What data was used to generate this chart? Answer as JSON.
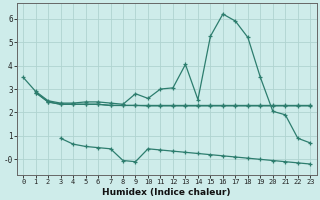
{
  "title": "",
  "xlabel": "Humidex (Indice chaleur)",
  "bg_color": "#ceecea",
  "line_color": "#2d7d6e",
  "grid_color": "#b0d4d0",
  "xlim": [
    -0.5,
    23.5
  ],
  "ylim": [
    -0.65,
    6.65
  ],
  "xticks": [
    0,
    1,
    2,
    3,
    4,
    5,
    6,
    7,
    8,
    9,
    10,
    11,
    12,
    13,
    14,
    15,
    16,
    17,
    18,
    19,
    20,
    21,
    22,
    23
  ],
  "yticks": [
    0,
    1,
    2,
    3,
    4,
    5,
    6
  ],
  "ytick_labels": [
    "-0",
    "1",
    "2",
    "3",
    "4",
    "5",
    "6"
  ],
  "line1_x": [
    0,
    1,
    2,
    3,
    4,
    5,
    6,
    7,
    8,
    9,
    10,
    11,
    12,
    13,
    14,
    15,
    16,
    17,
    18,
    19,
    20,
    21,
    22,
    23
  ],
  "line1_y": [
    3.5,
    2.9,
    2.5,
    2.4,
    2.4,
    2.45,
    2.45,
    2.4,
    2.35,
    2.8,
    2.6,
    3.0,
    3.05,
    4.05,
    2.55,
    5.25,
    6.2,
    5.9,
    5.2,
    3.5,
    2.05,
    1.9,
    0.9,
    0.7
  ],
  "line2_x": [
    1,
    2,
    3,
    4,
    5,
    6,
    7,
    8,
    9,
    10,
    11,
    12,
    13,
    14,
    15,
    16,
    17,
    18,
    19,
    20,
    21,
    22,
    23
  ],
  "line2_y": [
    2.85,
    2.45,
    2.35,
    2.35,
    2.35,
    2.35,
    2.3,
    2.3,
    2.3,
    2.3,
    2.3,
    2.3,
    2.3,
    2.3,
    2.3,
    2.3,
    2.3,
    2.3,
    2.3,
    2.3,
    2.3,
    2.3,
    2.3
  ],
  "line3_x": [
    1,
    2,
    3,
    4,
    5,
    6,
    7,
    8,
    9,
    10,
    11,
    12,
    13,
    14,
    15,
    16,
    17,
    18,
    19,
    20,
    21,
    22,
    23
  ],
  "line3_y": [
    2.85,
    2.45,
    2.35,
    2.35,
    2.35,
    2.35,
    2.3,
    2.3,
    2.3,
    2.28,
    2.28,
    2.28,
    2.28,
    2.28,
    2.28,
    2.28,
    2.28,
    2.28,
    2.28,
    2.28,
    2.28,
    2.28,
    2.28
  ],
  "line4_x": [
    3,
    4,
    5,
    6,
    7,
    8,
    9,
    10,
    11,
    12,
    13,
    14,
    15,
    16,
    17,
    18,
    19,
    20,
    21,
    22,
    23
  ],
  "line4_y": [
    0.9,
    0.65,
    0.55,
    0.5,
    0.45,
    -0.05,
    -0.1,
    0.45,
    0.4,
    0.35,
    0.3,
    0.25,
    0.2,
    0.15,
    0.1,
    0.05,
    0.0,
    -0.05,
    -0.1,
    -0.15,
    -0.2
  ],
  "marker": "+"
}
